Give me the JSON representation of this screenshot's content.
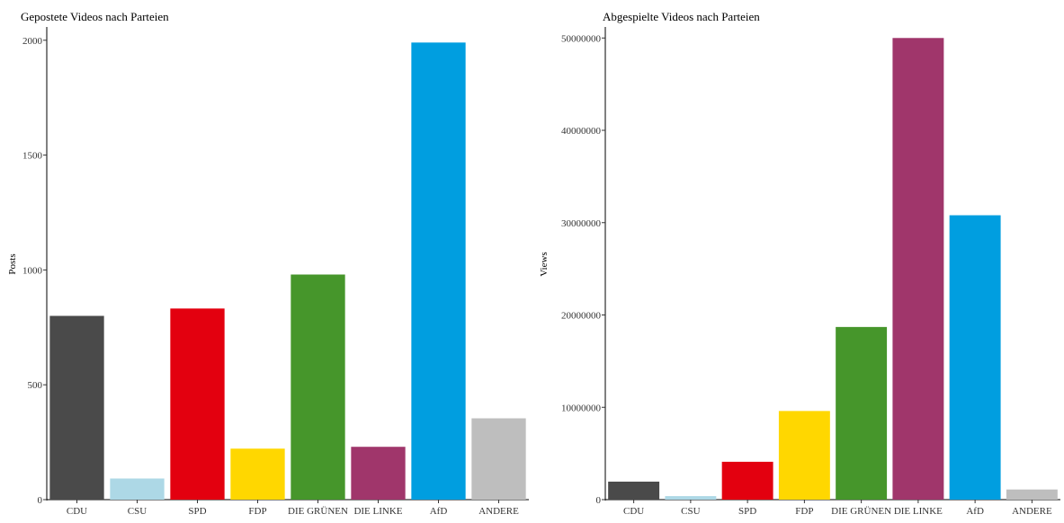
{
  "colors": {
    "CDU": "#4a4a4a",
    "CSU": "#add8e6",
    "SPD": "#e3000f",
    "FDP": "#ffd700",
    "DIE GRÜNEN": "#46962b",
    "DIE LINKE": "#a0366b",
    "AfD": "#009ee0",
    "ANDERE": "#bebebe"
  },
  "chart_data": [
    {
      "type": "bar",
      "title": "Gepostete Videos nach Parteien",
      "xlabel": "",
      "ylabel": "Posts",
      "categories": [
        "CDU",
        "CSU",
        "SPD",
        "FDP",
        "DIE GRÜNEN",
        "DIE LINKE",
        "AfD",
        "ANDERE"
      ],
      "values": [
        800,
        92,
        832,
        222,
        980,
        230,
        1990,
        354
      ],
      "ylim": [
        0,
        2050
      ],
      "yticks": [
        0,
        500,
        1000,
        1500,
        2000
      ],
      "ytick_labels": [
        "0",
        "500",
        "1000",
        "1500",
        "2000"
      ],
      "grid": false,
      "legend": "none"
    },
    {
      "type": "bar",
      "title": "Abgespielte Videos nach Parteien",
      "xlabel": "",
      "ylabel": "Views",
      "categories": [
        "CDU",
        "CSU",
        "SPD",
        "FDP",
        "DIE GRÜNEN",
        "DIE LINKE",
        "AfD",
        "ANDERE"
      ],
      "values": [
        1950000,
        380000,
        4100000,
        9600000,
        18700000,
        50000000,
        30800000,
        1100000
      ],
      "ylim": [
        0,
        51000000
      ],
      "yticks": [
        0,
        10000000,
        20000000,
        30000000,
        40000000,
        50000000
      ],
      "ytick_labels": [
        "0",
        "10000000",
        "20000000",
        "30000000",
        "40000000",
        "50000000"
      ],
      "grid": false,
      "legend": "none"
    }
  ]
}
